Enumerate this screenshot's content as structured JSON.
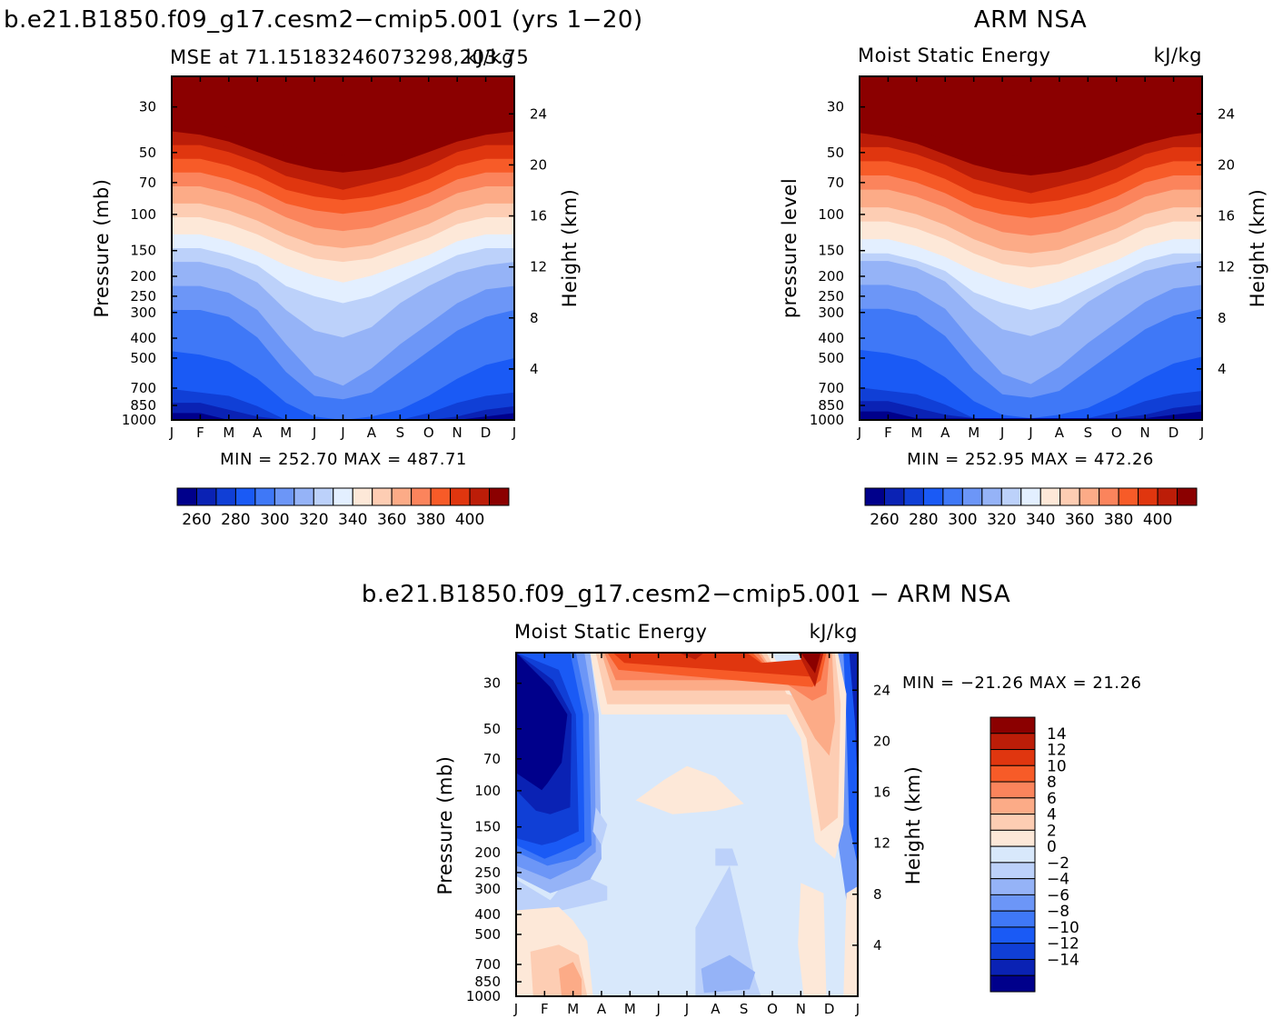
{
  "left_panel": {
    "title": "b.e21.B1850.f09_g17.cesm2−cmip5.001 (yrs 1−20)",
    "subtitle_left": "MSE at 71.15183246073298,203.75",
    "subtitle_right": "kJ/kg",
    "stats": "MIN = 252.70 MAX = 487.71"
  },
  "right_panel": {
    "title": "ARM NSA",
    "subtitle_left": "Moist Static Energy",
    "subtitle_right": "kJ/kg",
    "stats": "MIN = 252.95 MAX = 472.26"
  },
  "bottom_panel": {
    "title": "b.e21.B1850.f09_g17.cesm2−cmip5.001 − ARM NSA",
    "subtitle_left": "Moist Static Energy",
    "subtitle_right": "kJ/kg",
    "stats": "MIN = −21.26 MAX =  21.26"
  },
  "axes": {
    "ylabel_pressure_model": "Pressure (mb)",
    "ylabel_pressure_obs": "pressure level",
    "ylabel_height": "Height (km)",
    "pressure_ticks": [
      "30",
      "50",
      "70",
      "100",
      "150",
      "200",
      "250",
      "300",
      "400",
      "500",
      "700",
      "850",
      "1000"
    ],
    "height_ticks": [
      "24",
      "20",
      "16",
      "12",
      "8",
      "4"
    ],
    "month_ticks": [
      "J",
      "F",
      "M",
      "A",
      "M",
      "J",
      "J",
      "A",
      "S",
      "O",
      "N",
      "D",
      "J"
    ]
  },
  "colors": {
    "mse_levels": [
      "#00008b",
      "#0a22b4",
      "#103fd6",
      "#1a5af5",
      "#3f78f7",
      "#6c96f7",
      "#95b3f7",
      "#bcd1fa",
      "#e3efff",
      "#fde8d8",
      "#fdcdb3",
      "#fcab87",
      "#fb845c",
      "#f75b28",
      "#e0360f",
      "#bc1d08",
      "#8b0000"
    ],
    "diff_levels": [
      "#00008b",
      "#0a22b4",
      "#103fd6",
      "#1a5af5",
      "#3f78f7",
      "#6c96f7",
      "#95b3f7",
      "#bcd1fa",
      "#d8e8fb",
      "#fde8d8",
      "#fdcdb3",
      "#fcab87",
      "#fb845c",
      "#f75b28",
      "#e0360f",
      "#bc1d08",
      "#8b0000"
    ]
  },
  "colorbars": {
    "mse_labels": [
      "260",
      "280",
      "300",
      "320",
      "340",
      "360",
      "380",
      "400"
    ],
    "diff_labels": [
      "14",
      "12",
      "10",
      "8",
      "6",
      "4",
      "2",
      "0",
      "−2",
      "−4",
      "−6",
      "−8",
      "−10",
      "−12",
      "−14"
    ]
  },
  "chart_data": [
    {
      "type": "heatmap",
      "title": "b.e21.B1850.f09_g17.cesm2−cmip5.001 (yrs 1−20)",
      "subtitle": "MSE at 71.15183246073298,203.75",
      "units": "kJ/kg",
      "x": [
        "J",
        "F",
        "M",
        "A",
        "M",
        "J",
        "J",
        "A",
        "S",
        "O",
        "N",
        "D",
        "J"
      ],
      "y_pressure_mb": [
        30,
        50,
        70,
        100,
        150,
        200,
        250,
        300,
        400,
        500,
        700,
        850,
        1000
      ],
      "contour_levels": [
        260,
        270,
        280,
        290,
        300,
        310,
        320,
        330,
        340,
        350,
        360,
        370,
        380,
        390,
        400
      ],
      "min": 252.7,
      "max": 487.71
    },
    {
      "type": "heatmap",
      "title": "ARM NSA",
      "subtitle": "Moist Static Energy",
      "units": "kJ/kg",
      "x": [
        "J",
        "F",
        "M",
        "A",
        "M",
        "J",
        "J",
        "A",
        "S",
        "O",
        "N",
        "D",
        "J"
      ],
      "y_pressure_mb": [
        30,
        50,
        70,
        100,
        150,
        200,
        250,
        300,
        400,
        500,
        700,
        850,
        1000
      ],
      "contour_levels": [
        260,
        270,
        280,
        290,
        300,
        310,
        320,
        330,
        340,
        350,
        360,
        370,
        380,
        390,
        400
      ],
      "min": 252.95,
      "max": 472.26
    },
    {
      "type": "heatmap",
      "title": "b.e21.B1850.f09_g17.cesm2−cmip5.001 − ARM NSA",
      "subtitle": "Moist Static Energy",
      "units": "kJ/kg",
      "x": [
        "J",
        "F",
        "M",
        "A",
        "M",
        "J",
        "J",
        "A",
        "S",
        "O",
        "N",
        "D",
        "J"
      ],
      "y_pressure_mb": [
        30,
        50,
        70,
        100,
        150,
        200,
        250,
        300,
        400,
        500,
        700,
        850,
        1000
      ],
      "contour_levels": [
        -14,
        -12,
        -10,
        -8,
        -6,
        -4,
        -2,
        0,
        2,
        4,
        6,
        8,
        10,
        12,
        14
      ],
      "min": -21.26,
      "max": 21.26
    }
  ]
}
